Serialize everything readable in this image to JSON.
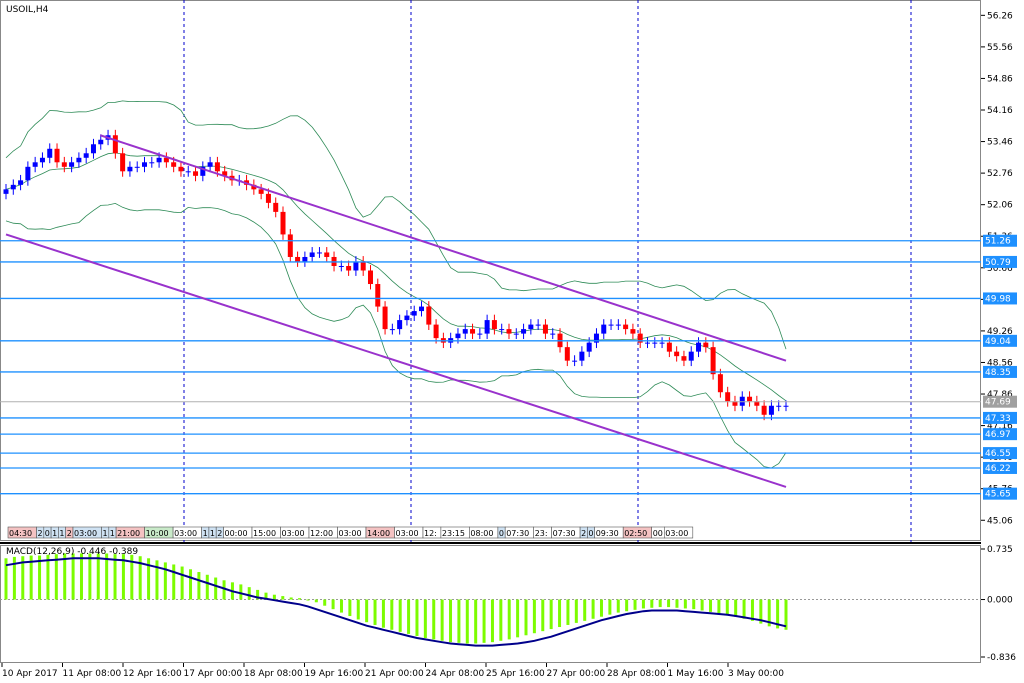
{
  "chart_data": [
    {
      "type": "candlestick",
      "title": "USOIL,H4",
      "price_range": [
        44.6,
        56.6
      ],
      "y_ticks": [
        56.26,
        55.56,
        54.86,
        54.16,
        53.46,
        52.76,
        52.06,
        51.36,
        50.66,
        49.96,
        49.26,
        48.56,
        47.86,
        47.16,
        46.46,
        45.76,
        45.06
      ],
      "current_price": "47.69",
      "horizontal_levels": [
        {
          "label": "51.26",
          "value": 51.26
        },
        {
          "label": "50.79",
          "value": 50.79
        },
        {
          "label": "49.98",
          "value": 49.98
        },
        {
          "label": "49.04",
          "value": 49.04
        },
        {
          "label": "48.35",
          "value": 48.35
        },
        {
          "label": "47.33",
          "value": 47.33
        },
        {
          "label": "46.97",
          "value": 46.97
        },
        {
          "label": "46.55",
          "value": 46.55
        },
        {
          "label": "46.22",
          "value": 46.22
        },
        {
          "label": "45.65",
          "value": 45.65
        }
      ],
      "x_labels": [
        "10 Apr 2017",
        "11 Apr 08:00",
        "12 Apr 16:00",
        "17 Apr 00:00",
        "18 Apr 08:00",
        "19 Apr 16:00",
        "21 Apr 00:00",
        "24 Apr 08:00",
        "25 Apr 16:00",
        "27 Apr 00:00",
        "28 Apr 08:00",
        "1 May 16:00",
        "3 May 00:00"
      ],
      "channel_lines": [
        {
          "name": "upper",
          "start_index": 29,
          "start_price": 53.6,
          "end_index": 240,
          "end_price": 48.6
        },
        {
          "name": "lower",
          "start_index": 0,
          "start_price": 51.4,
          "end_index": 240,
          "end_price": 45.8
        }
      ],
      "closes": [
        52.4,
        52.5,
        52.6,
        52.9,
        53.0,
        53.1,
        53.3,
        53.0,
        52.9,
        53.0,
        53.1,
        53.2,
        53.4,
        53.5,
        53.6,
        53.2,
        52.8,
        52.9,
        52.9,
        53.0,
        53.0,
        53.1,
        53.0,
        52.9,
        52.8,
        52.8,
        52.7,
        52.9,
        53.0,
        52.8,
        52.7,
        52.6,
        52.6,
        52.5,
        52.4,
        52.3,
        52.1,
        51.9,
        51.4,
        50.9,
        50.8,
        50.9,
        51.0,
        51.0,
        50.9,
        50.7,
        50.7,
        50.6,
        50.8,
        50.6,
        50.3,
        49.8,
        49.3,
        49.3,
        49.5,
        49.6,
        49.7,
        49.8,
        49.4,
        49.1,
        49.0,
        49.1,
        49.2,
        49.3,
        49.2,
        49.2,
        49.5,
        49.3,
        49.3,
        49.2,
        49.2,
        49.3,
        49.4,
        49.4,
        49.2,
        49.2,
        48.9,
        48.6,
        48.6,
        48.8,
        49.0,
        49.2,
        49.4,
        49.4,
        49.4,
        49.3,
        49.2,
        49.0,
        49.0,
        49.0,
        49.0,
        48.8,
        48.7,
        48.6,
        48.8,
        49.0,
        48.9,
        48.3,
        47.9,
        47.7,
        47.6,
        47.8,
        47.7,
        47.6,
        47.4,
        47.6,
        47.6,
        47.6
      ]
    },
    {
      "type": "bar",
      "title": "MACD(12,26,9) -0.446 -0.389",
      "y_ticks": [
        "0.735",
        "0.000",
        "-0.836"
      ],
      "ylim": [
        -0.836,
        0.735
      ],
      "values": [
        0.6,
        0.62,
        0.63,
        0.64,
        0.64,
        0.65,
        0.66,
        0.67,
        0.67,
        0.67,
        0.67,
        0.67,
        0.67,
        0.66,
        0.66,
        0.65,
        0.63,
        0.6,
        0.57,
        0.54,
        0.51,
        0.48,
        0.44,
        0.4,
        0.36,
        0.32,
        0.28,
        0.25,
        0.22,
        0.18,
        0.14,
        0.1,
        0.07,
        0.05,
        0.03,
        0.02,
        0.0,
        -0.04,
        -0.09,
        -0.14,
        -0.19,
        -0.24,
        -0.29,
        -0.33,
        -0.37,
        -0.41,
        -0.44,
        -0.47,
        -0.5,
        -0.53,
        -0.56,
        -0.58,
        -0.6,
        -0.62,
        -0.63,
        -0.64,
        -0.64,
        -0.63,
        -0.62,
        -0.6,
        -0.58,
        -0.55,
        -0.52,
        -0.49,
        -0.46,
        -0.43,
        -0.4,
        -0.37,
        -0.34,
        -0.31,
        -0.28,
        -0.25,
        -0.22,
        -0.19,
        -0.17,
        -0.15,
        -0.13,
        -0.12,
        -0.11,
        -0.11,
        -0.12,
        -0.13,
        -0.14,
        -0.16,
        -0.18,
        -0.2,
        -0.22,
        -0.25,
        -0.28,
        -0.31,
        -0.35,
        -0.39,
        -0.42,
        -0.44
      ],
      "signal": [
        0.5,
        0.52,
        0.54,
        0.55,
        0.56,
        0.57,
        0.58,
        0.59,
        0.6,
        0.6,
        0.6,
        0.6,
        0.59,
        0.58,
        0.57,
        0.55,
        0.53,
        0.5,
        0.47,
        0.44,
        0.4,
        0.36,
        0.32,
        0.28,
        0.24,
        0.2,
        0.16,
        0.12,
        0.09,
        0.06,
        0.03,
        0.01,
        -0.01,
        -0.03,
        -0.05,
        -0.07,
        -0.1,
        -0.14,
        -0.18,
        -0.22,
        -0.26,
        -0.3,
        -0.34,
        -0.38,
        -0.41,
        -0.44,
        -0.47,
        -0.5,
        -0.53,
        -0.56,
        -0.58,
        -0.6,
        -0.62,
        -0.64,
        -0.65,
        -0.66,
        -0.67,
        -0.67,
        -0.67,
        -0.66,
        -0.65,
        -0.64,
        -0.62,
        -0.6,
        -0.57,
        -0.54,
        -0.5,
        -0.46,
        -0.42,
        -0.38,
        -0.34,
        -0.3,
        -0.27,
        -0.24,
        -0.21,
        -0.19,
        -0.17,
        -0.16,
        -0.16,
        -0.16,
        -0.16,
        -0.17,
        -0.18,
        -0.19,
        -0.2,
        -0.21,
        -0.22,
        -0.24,
        -0.26,
        -0.28,
        -0.3,
        -0.33,
        -0.36,
        -0.39
      ]
    }
  ],
  "time_strip": [
    {
      "text": "04:30",
      "bg": "#f4c2c2"
    },
    {
      "text": "2",
      "bg": "#cfe2f3"
    },
    {
      "text": "0",
      "bg": "#cfe2f3"
    },
    {
      "text": "1",
      "bg": "#cfe2f3"
    },
    {
      "text": "1",
      "bg": "#cfe2f3"
    },
    {
      "text": "2",
      "bg": "#f4c2c2"
    },
    {
      "text": "03:00",
      "bg": "#cfe2f3"
    },
    {
      "text": "1",
      "bg": "#cfe2f3"
    },
    {
      "text": "1",
      "bg": "#cfe2f3"
    },
    {
      "text": "21:00",
      "bg": "#f4c2c2"
    },
    {
      "text": "10:00",
      "bg": "#c9eac9"
    },
    {
      "text": "03:00",
      "bg": "#ffffff"
    },
    {
      "text": "1",
      "bg": "#cfe2f3"
    },
    {
      "text": "1",
      "bg": "#cfe2f3"
    },
    {
      "text": "2",
      "bg": "#cfe2f3"
    },
    {
      "text": "00:00",
      "bg": "#ffffff"
    },
    {
      "text": "15:00",
      "bg": "#ffffff"
    },
    {
      "text": "03:00",
      "bg": "#ffffff"
    },
    {
      "text": "12:00",
      "bg": "#ffffff"
    },
    {
      "text": "03:00",
      "bg": "#ffffff"
    },
    {
      "text": "14:00",
      "bg": "#f4c2c2"
    },
    {
      "text": "03:00",
      "bg": "#ffffff"
    },
    {
      "text": "12:",
      "bg": "#ffffff"
    },
    {
      "text": "23:15",
      "bg": "#ffffff"
    },
    {
      "text": "08:00",
      "bg": "#ffffff"
    },
    {
      "text": "0",
      "bg": "#cfe2f3"
    },
    {
      "text": "07:30",
      "bg": "#ffffff"
    },
    {
      "text": "23:",
      "bg": "#ffffff"
    },
    {
      "text": "07:30",
      "bg": "#ffffff"
    },
    {
      "text": "2",
      "bg": "#cfe2f3"
    },
    {
      "text": "0",
      "bg": "#cfe2f3"
    },
    {
      "text": "09:30",
      "bg": "#ffffff"
    },
    {
      "text": "02:50",
      "bg": "#f4c2c2"
    },
    {
      "text": "00",
      "bg": "#ffffff"
    },
    {
      "text": "03:00",
      "bg": "#ffffff"
    }
  ],
  "colors": {
    "bull": "#0000ff",
    "bear": "#ff0000",
    "level": "#1e90ff",
    "channel": "#9932cc",
    "bands": "#2e8b57",
    "macd_hist": "#7cfc00",
    "macd_signal": "#00008b",
    "grid": "#0000cd"
  }
}
